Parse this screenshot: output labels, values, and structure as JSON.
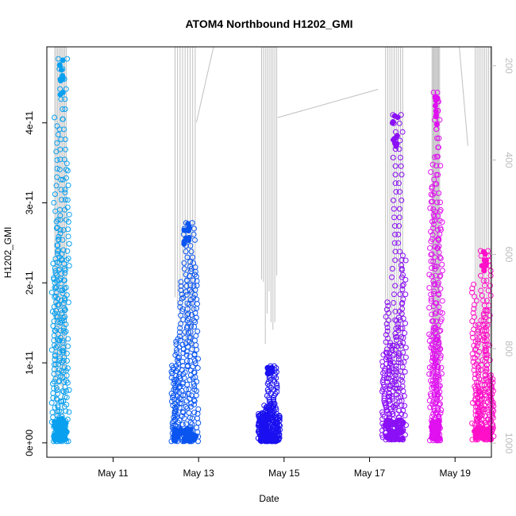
{
  "chart_data": {
    "type": "scatter",
    "title": "ATOM4 Northbound H1202_GMI",
    "xlabel": "Date",
    "ylabel": "H1202_GMI",
    "x_tick_labels": [
      "May 11",
      "May 13",
      "May 15",
      "May 17",
      "May 19"
    ],
    "x_tick_days": [
      11,
      13,
      15,
      17,
      19
    ],
    "xlim_days": [
      9.45,
      19.85
    ],
    "ylim": [
      -1.8e-12,
      4.95e-11
    ],
    "y_ticks": [
      0,
      1e-11,
      2e-11,
      3e-11,
      4e-11
    ],
    "y_tick_labels": [
      "0e+00",
      "1e-11",
      "2e-11",
      "3e-11",
      "4e-11"
    ],
    "y2_label": "",
    "y2_ticks": [
      200,
      400,
      600,
      800,
      1000
    ],
    "y2_tick_labels": [
      "200",
      "400",
      "600",
      "800",
      "1000"
    ],
    "y2_lim": [
      1030,
      160
    ],
    "pressure_line_color": "#c0c0c0",
    "series": [
      {
        "color": "#0aa0f0",
        "day_start": 9.62,
        "day_end": 9.92,
        "y_max": 4.8e-11,
        "y_baseline": 2e-13,
        "pressure_min": 150,
        "pressure_max": 1000
      },
      {
        "color": "#0a55f0",
        "day_start": 12.42,
        "day_end": 12.95,
        "y_max": 2.75e-11,
        "y_baseline": 2e-13,
        "pressure_min": 150,
        "pressure_max": 840
      },
      {
        "color": "#1a10f0",
        "day_start": 14.45,
        "day_end": 14.85,
        "y_max": 9.6e-12,
        "y_baseline": 2e-13,
        "pressure_min": 150,
        "pressure_max": 810
      },
      {
        "color": "#8a10f5",
        "day_start": 17.35,
        "day_end": 17.8,
        "y_max": 4.1e-11,
        "y_baseline": 4e-13,
        "pressure_min": 150,
        "pressure_max": 960
      },
      {
        "color": "#e010f0",
        "day_start": 18.45,
        "day_end": 18.65,
        "y_max": 4.38e-11,
        "y_baseline": 3e-13,
        "pressure_min": 150,
        "pressure_max": 960
      },
      {
        "color": "#ff10c8",
        "day_start": 19.45,
        "day_end": 19.85,
        "y_max": 2.4e-11,
        "y_baseline": 4e-13,
        "pressure_min": 150,
        "pressure_max": 960
      }
    ]
  }
}
